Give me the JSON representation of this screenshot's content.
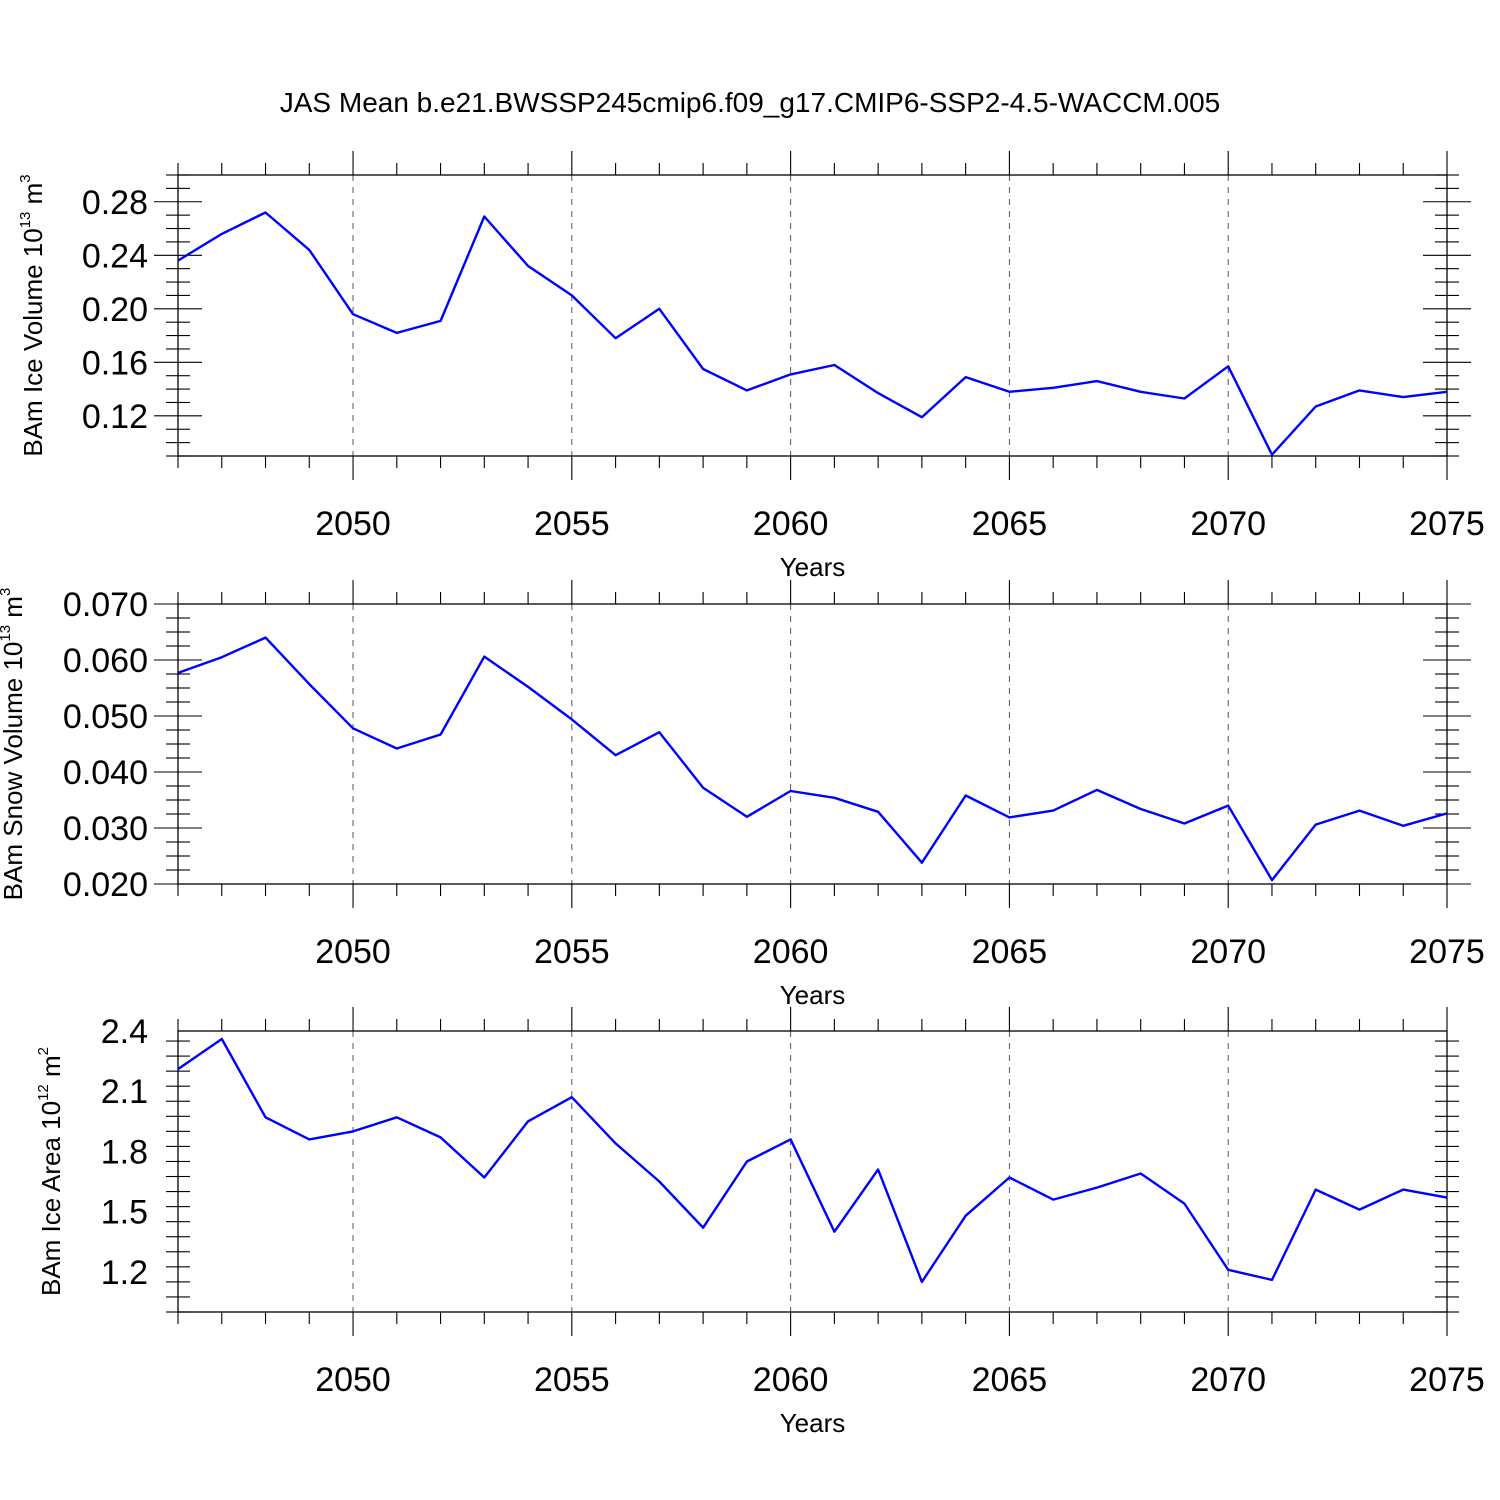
{
  "chart_data": [
    {
      "type": "line",
      "title": "JAS Mean b.e21.BWSSP245cmip6.f09_g17.CMIP6-SSP2-4.5-WACCM.005",
      "xlabel": "Years",
      "ylabel": "BAm Ice Volume 10",
      "ylabel_exponent": "13",
      "ylabel_unit": " m",
      "ylabel_unit_power": "3",
      "xlim": [
        2046,
        2075
      ],
      "ylim": [
        0.09,
        0.3
      ],
      "xticks": [
        2050,
        2055,
        2060,
        2065,
        2070,
        2075
      ],
      "ytick_values": [
        0.12,
        0.16,
        0.2,
        0.24,
        0.28
      ],
      "ytick_labels": [
        "0.12",
        "0.16",
        "0.20",
        "0.24",
        "0.28"
      ],
      "x": [
        2046,
        2047,
        2048,
        2049,
        2050,
        2051,
        2052,
        2053,
        2054,
        2055,
        2056,
        2057,
        2058,
        2059,
        2060,
        2061,
        2062,
        2063,
        2064,
        2065,
        2066,
        2067,
        2068,
        2069,
        2070,
        2071,
        2072,
        2073,
        2074,
        2075
      ],
      "series": [
        {
          "name": "BAm Ice Volume",
          "color": "#0000ff",
          "values": [
            0.236,
            0.256,
            0.272,
            0.244,
            0.196,
            0.182,
            0.191,
            0.269,
            0.232,
            0.21,
            0.178,
            0.2,
            0.155,
            0.139,
            0.151,
            0.158,
            0.137,
            0.119,
            0.149,
            0.138,
            0.141,
            0.146,
            0.138,
            0.133,
            0.157,
            0.091,
            0.127,
            0.139,
            0.134,
            0.138
          ]
        }
      ]
    },
    {
      "type": "line",
      "xlabel": "Years",
      "ylabel": "BAm Snow Volume 10",
      "ylabel_exponent": "13",
      "ylabel_unit": " m",
      "ylabel_unit_power": "3",
      "xlim": [
        2046,
        2075
      ],
      "ylim": [
        0.02,
        0.07
      ],
      "xticks": [
        2050,
        2055,
        2060,
        2065,
        2070,
        2075
      ],
      "ytick_values": [
        0.02,
        0.03,
        0.04,
        0.05,
        0.06,
        0.07
      ],
      "ytick_labels": [
        "0.020",
        "0.030",
        "0.040",
        "0.050",
        "0.060",
        "0.070"
      ],
      "x": [
        2046,
        2047,
        2048,
        2049,
        2050,
        2051,
        2052,
        2053,
        2054,
        2055,
        2056,
        2057,
        2058,
        2059,
        2060,
        2061,
        2062,
        2063,
        2064,
        2065,
        2066,
        2067,
        2068,
        2069,
        2070,
        2071,
        2072,
        2073,
        2074,
        2075
      ],
      "series": [
        {
          "name": "BAm Snow Volume",
          "color": "#0000ff",
          "values": [
            0.0577,
            0.0605,
            0.064,
            0.0557,
            0.0478,
            0.0442,
            0.0467,
            0.0606,
            0.0552,
            0.0494,
            0.043,
            0.0471,
            0.0372,
            0.032,
            0.0366,
            0.0354,
            0.0329,
            0.0238,
            0.0358,
            0.0319,
            0.0331,
            0.0368,
            0.0334,
            0.0308,
            0.034,
            0.0207,
            0.0306,
            0.0331,
            0.0304,
            0.0326
          ]
        }
      ]
    },
    {
      "type": "line",
      "xlabel": "Years",
      "ylabel": "BAm Ice Area 10",
      "ylabel_exponent": "12",
      "ylabel_unit": " m",
      "ylabel_unit_power": "2",
      "xlim": [
        2046,
        2075
      ],
      "ylim": [
        1.0,
        2.4
      ],
      "xticks": [
        2050,
        2055,
        2060,
        2065,
        2070,
        2075
      ],
      "ytick_values": [
        1.2,
        1.5,
        1.8,
        2.1,
        2.4
      ],
      "ytick_labels": [
        "1.2",
        "1.5",
        "1.8",
        "2.1",
        "2.4"
      ],
      "x": [
        2046,
        2047,
        2048,
        2049,
        2050,
        2051,
        2052,
        2053,
        2054,
        2055,
        2056,
        2057,
        2058,
        2059,
        2060,
        2061,
        2062,
        2063,
        2064,
        2065,
        2066,
        2067,
        2068,
        2069,
        2070,
        2071,
        2072,
        2073,
        2074,
        2075
      ],
      "series": [
        {
          "name": "BAm Ice Area",
          "color": "#0000ff",
          "values": [
            2.21,
            2.36,
            1.97,
            1.86,
            1.9,
            1.97,
            1.87,
            1.67,
            1.95,
            2.07,
            1.84,
            1.65,
            1.42,
            1.75,
            1.86,
            1.4,
            1.71,
            1.15,
            1.48,
            1.67,
            1.56,
            1.62,
            1.69,
            1.54,
            1.21,
            1.16,
            1.61,
            1.51,
            1.61,
            1.57
          ]
        }
      ]
    }
  ]
}
